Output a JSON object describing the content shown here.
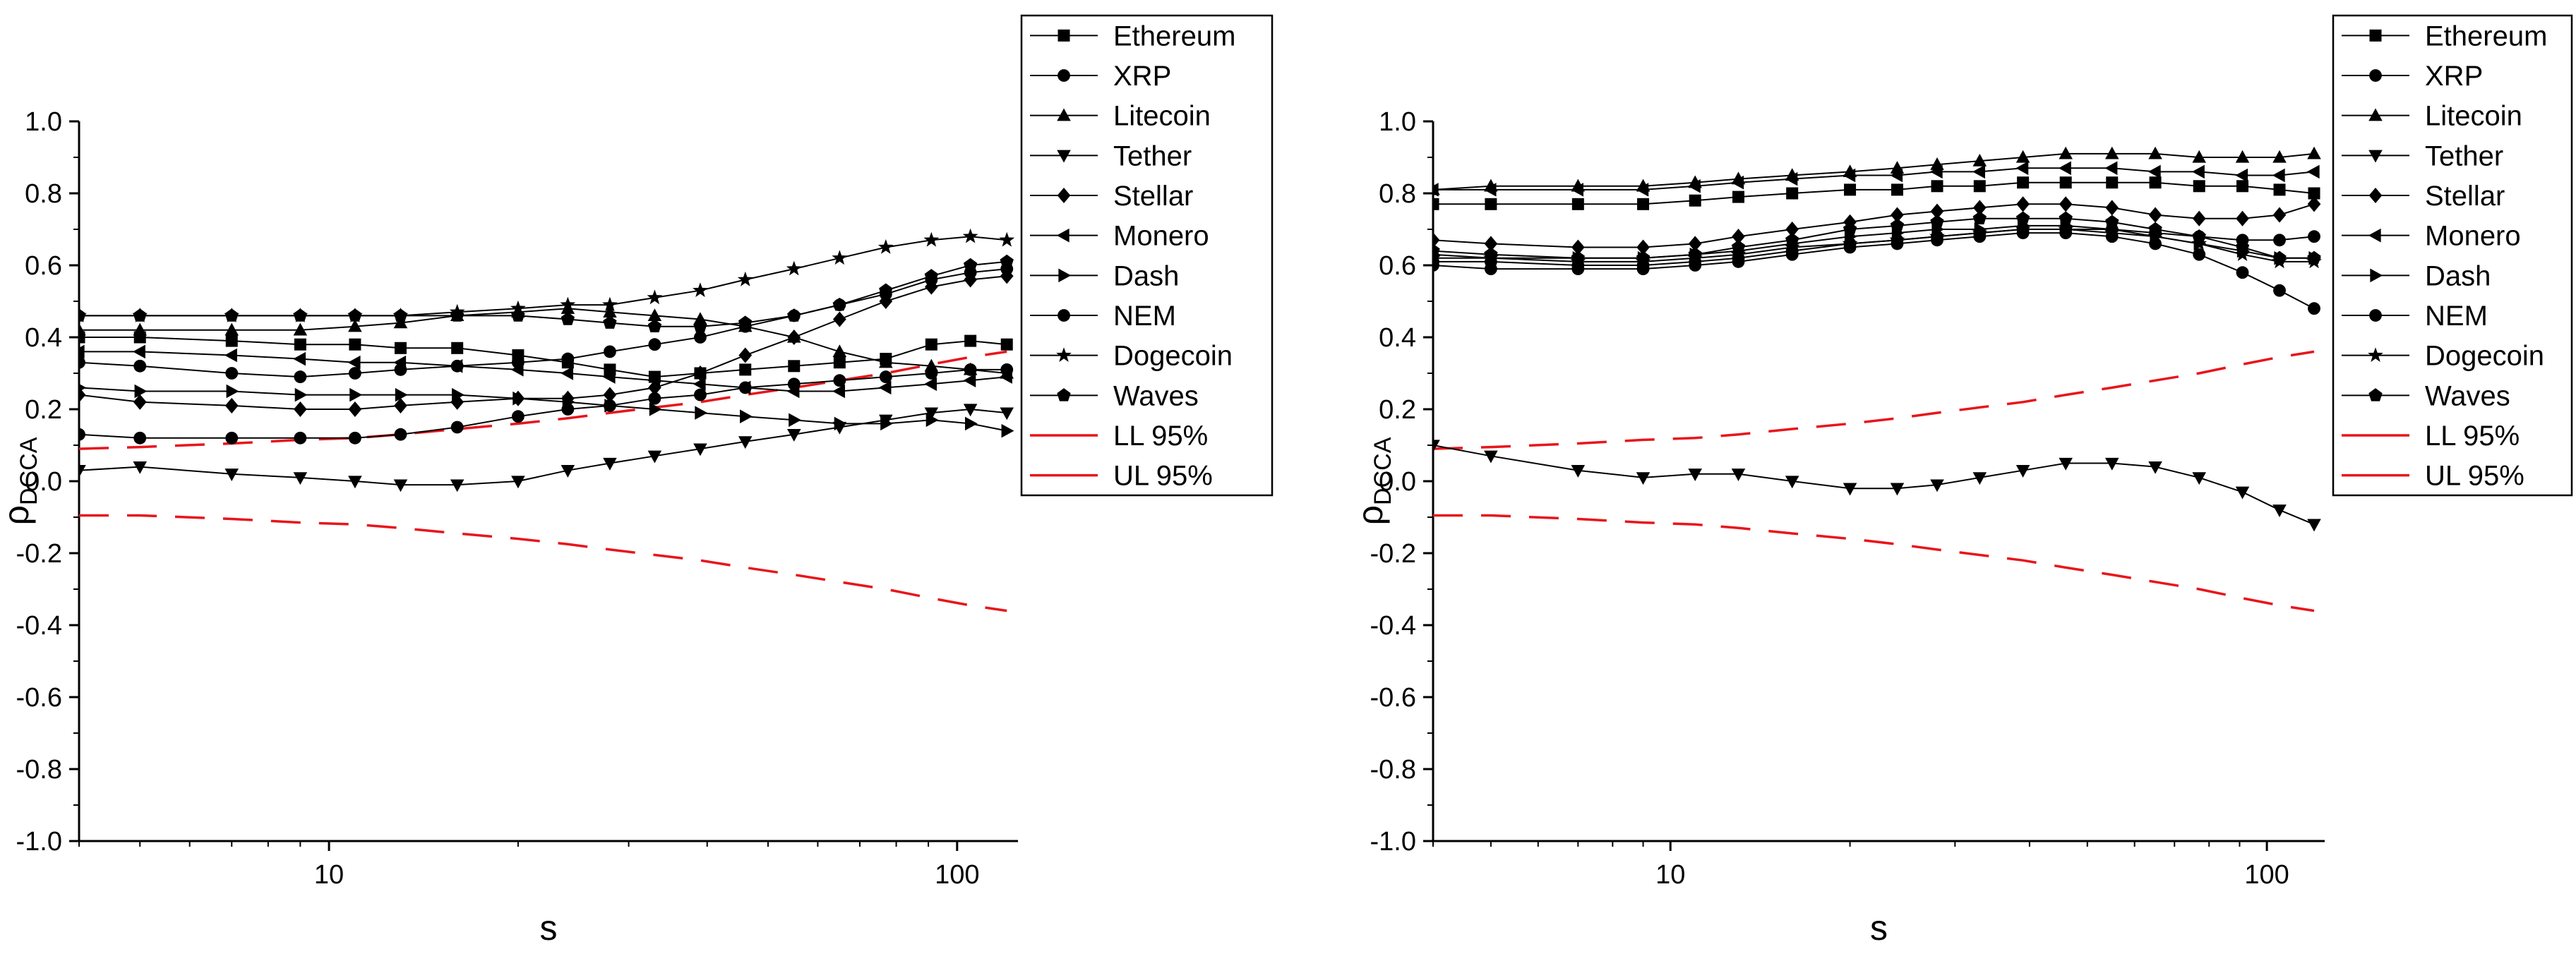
{
  "chart_data": [
    {
      "type": "line",
      "panel": "left",
      "xlabel": "s",
      "ylabel": "ρDCCA",
      "ylabel_main": "ρ",
      "ylabel_sub": "DCCA",
      "xscale": "log",
      "xlim": [
        4,
        125
      ],
      "ylim": [
        -1.0,
        1.0
      ],
      "yticks": [
        "-1.0",
        "-0.8",
        "-0.6",
        "-0.4",
        "-0.2",
        "0.0",
        "0.2",
        "0.4",
        "0.6",
        "0.8",
        "1.0"
      ],
      "xticks": [
        "10",
        "100"
      ],
      "legend_position": "top-right outside",
      "x": [
        4,
        5,
        7,
        9,
        11,
        13,
        16,
        20,
        24,
        28,
        33,
        39,
        46,
        55,
        65,
        77,
        91,
        105,
        120
      ],
      "series": [
        {
          "name": "Ethereum",
          "marker": "square",
          "values": [
            0.4,
            0.4,
            0.39,
            0.38,
            0.38,
            0.37,
            0.37,
            0.35,
            0.33,
            0.31,
            0.29,
            0.3,
            0.31,
            0.32,
            0.33,
            0.34,
            0.38,
            0.39,
            0.38
          ]
        },
        {
          "name": "XRP",
          "marker": "circle",
          "values": [
            0.13,
            0.12,
            0.12,
            0.12,
            0.12,
            0.13,
            0.15,
            0.18,
            0.2,
            0.21,
            0.23,
            0.24,
            0.26,
            0.27,
            0.28,
            0.29,
            0.3,
            0.31,
            0.31
          ]
        },
        {
          "name": "Litecoin",
          "marker": "triangle-up",
          "values": [
            0.42,
            0.42,
            0.42,
            0.42,
            0.43,
            0.44,
            0.46,
            0.47,
            0.48,
            0.47,
            0.46,
            0.45,
            0.43,
            0.4,
            0.36,
            0.33,
            0.32,
            0.31,
            0.3
          ]
        },
        {
          "name": "Tether",
          "marker": "triangle-down",
          "values": [
            0.03,
            0.04,
            0.02,
            0.01,
            0.0,
            -0.01,
            -0.01,
            0.0,
            0.03,
            0.05,
            0.07,
            0.09,
            0.11,
            0.13,
            0.15,
            0.17,
            0.19,
            0.2,
            0.19
          ]
        },
        {
          "name": "Stellar",
          "marker": "diamond",
          "values": [
            0.24,
            0.22,
            0.21,
            0.2,
            0.2,
            0.21,
            0.22,
            0.23,
            0.23,
            0.24,
            0.26,
            0.3,
            0.35,
            0.4,
            0.45,
            0.5,
            0.54,
            0.56,
            0.57
          ]
        },
        {
          "name": "Monero",
          "marker": "triangle-left",
          "values": [
            0.36,
            0.36,
            0.35,
            0.34,
            0.33,
            0.33,
            0.32,
            0.31,
            0.3,
            0.29,
            0.28,
            0.27,
            0.26,
            0.25,
            0.25,
            0.26,
            0.27,
            0.28,
            0.29
          ]
        },
        {
          "name": "Dash",
          "marker": "triangle-right",
          "values": [
            0.26,
            0.25,
            0.25,
            0.24,
            0.24,
            0.24,
            0.24,
            0.23,
            0.22,
            0.21,
            0.2,
            0.19,
            0.18,
            0.17,
            0.16,
            0.16,
            0.17,
            0.16,
            0.14
          ]
        },
        {
          "name": "NEM",
          "marker": "circle",
          "values": [
            0.33,
            0.32,
            0.3,
            0.29,
            0.3,
            0.31,
            0.32,
            0.33,
            0.34,
            0.36,
            0.38,
            0.4,
            0.43,
            0.46,
            0.49,
            0.52,
            0.56,
            0.58,
            0.59
          ]
        },
        {
          "name": "Dogecoin",
          "marker": "star",
          "values": [
            0.46,
            0.46,
            0.46,
            0.46,
            0.46,
            0.46,
            0.47,
            0.48,
            0.49,
            0.49,
            0.51,
            0.53,
            0.56,
            0.59,
            0.62,
            0.65,
            0.67,
            0.68,
            0.67
          ]
        },
        {
          "name": "Waves",
          "marker": "pentagon",
          "values": [
            0.46,
            0.46,
            0.46,
            0.46,
            0.46,
            0.46,
            0.46,
            0.46,
            0.45,
            0.44,
            0.43,
            0.43,
            0.44,
            0.46,
            0.49,
            0.53,
            0.57,
            0.6,
            0.61
          ]
        }
      ],
      "bounds": [
        {
          "name": "LL 95%",
          "values": [
            0.09,
            0.095,
            0.105,
            0.115,
            0.12,
            0.13,
            0.145,
            0.16,
            0.175,
            0.19,
            0.205,
            0.22,
            0.24,
            0.26,
            0.28,
            0.3,
            0.325,
            0.345,
            0.36
          ]
        },
        {
          "name": "UL 95%",
          "values": [
            -0.095,
            -0.095,
            -0.105,
            -0.115,
            -0.12,
            -0.13,
            -0.145,
            -0.16,
            -0.175,
            -0.19,
            -0.205,
            -0.22,
            -0.24,
            -0.26,
            -0.28,
            -0.3,
            -0.325,
            -0.345,
            -0.36
          ]
        }
      ]
    },
    {
      "type": "line",
      "panel": "right",
      "xlabel": "s",
      "ylabel": "ρDCCA",
      "ylabel_main": "ρ",
      "ylabel_sub": "DCCA",
      "xscale": "log",
      "xlim": [
        4,
        125
      ],
      "ylim": [
        -1.0,
        1.0
      ],
      "yticks": [
        "-1.0",
        "-0.8",
        "-0.6",
        "-0.4",
        "-0.2",
        "0.0",
        "0.2",
        "0.4",
        "0.6",
        "0.8",
        "1.0"
      ],
      "xticks": [
        "10",
        "100"
      ],
      "legend_position": "top-right outside",
      "x": [
        4,
        5,
        7,
        9,
        11,
        13,
        16,
        20,
        24,
        28,
        33,
        39,
        46,
        55,
        65,
        77,
        91,
        105,
        120
      ],
      "series": [
        {
          "name": "Ethereum",
          "marker": "square",
          "values": [
            0.77,
            0.77,
            0.77,
            0.77,
            0.78,
            0.79,
            0.8,
            0.81,
            0.81,
            0.82,
            0.82,
            0.83,
            0.83,
            0.83,
            0.83,
            0.82,
            0.82,
            0.81,
            0.8
          ]
        },
        {
          "name": "XRP",
          "marker": "circle",
          "values": [
            0.6,
            0.59,
            0.59,
            0.59,
            0.6,
            0.61,
            0.63,
            0.65,
            0.66,
            0.67,
            0.68,
            0.69,
            0.69,
            0.68,
            0.66,
            0.63,
            0.58,
            0.53,
            0.48
          ]
        },
        {
          "name": "Litecoin",
          "marker": "triangle-up",
          "values": [
            0.81,
            0.82,
            0.82,
            0.82,
            0.83,
            0.84,
            0.85,
            0.86,
            0.87,
            0.88,
            0.89,
            0.9,
            0.91,
            0.91,
            0.91,
            0.9,
            0.9,
            0.9,
            0.91
          ]
        },
        {
          "name": "Tether",
          "marker": "triangle-down",
          "values": [
            0.1,
            0.07,
            0.03,
            0.01,
            0.02,
            0.02,
            0.0,
            -0.02,
            -0.02,
            -0.01,
            0.01,
            0.03,
            0.05,
            0.05,
            0.04,
            0.01,
            -0.03,
            -0.08,
            -0.12
          ]
        },
        {
          "name": "Stellar",
          "marker": "diamond",
          "values": [
            0.67,
            0.66,
            0.65,
            0.65,
            0.66,
            0.68,
            0.7,
            0.72,
            0.74,
            0.75,
            0.76,
            0.77,
            0.77,
            0.76,
            0.74,
            0.73,
            0.73,
            0.74,
            0.77
          ]
        },
        {
          "name": "Monero",
          "marker": "triangle-left",
          "values": [
            0.81,
            0.81,
            0.81,
            0.81,
            0.82,
            0.83,
            0.84,
            0.85,
            0.85,
            0.86,
            0.86,
            0.87,
            0.87,
            0.87,
            0.86,
            0.86,
            0.85,
            0.85,
            0.86
          ]
        },
        {
          "name": "Dash",
          "marker": "triangle-right",
          "values": [
            0.63,
            0.62,
            0.62,
            0.62,
            0.63,
            0.64,
            0.66,
            0.68,
            0.69,
            0.7,
            0.7,
            0.71,
            0.71,
            0.7,
            0.68,
            0.66,
            0.64,
            0.62,
            0.62
          ]
        },
        {
          "name": "NEM",
          "marker": "circle",
          "values": [
            0.61,
            0.61,
            0.6,
            0.6,
            0.61,
            0.62,
            0.64,
            0.66,
            0.67,
            0.68,
            0.69,
            0.7,
            0.7,
            0.7,
            0.69,
            0.68,
            0.67,
            0.67,
            0.68
          ]
        },
        {
          "name": "Dogecoin",
          "marker": "star",
          "values": [
            0.62,
            0.62,
            0.61,
            0.61,
            0.62,
            0.63,
            0.65,
            0.66,
            0.67,
            0.68,
            0.69,
            0.7,
            0.7,
            0.69,
            0.68,
            0.66,
            0.63,
            0.61,
            0.61
          ]
        },
        {
          "name": "Waves",
          "marker": "pentagon",
          "values": [
            0.64,
            0.63,
            0.62,
            0.62,
            0.63,
            0.65,
            0.67,
            0.7,
            0.71,
            0.72,
            0.73,
            0.73,
            0.73,
            0.72,
            0.7,
            0.68,
            0.65,
            0.62,
            0.62
          ]
        }
      ],
      "bounds": [
        {
          "name": "LL 95%",
          "values": [
            0.09,
            0.095,
            0.105,
            0.115,
            0.12,
            0.13,
            0.145,
            0.16,
            0.175,
            0.19,
            0.205,
            0.22,
            0.24,
            0.26,
            0.28,
            0.3,
            0.325,
            0.345,
            0.36
          ]
        },
        {
          "name": "UL 95%",
          "values": [
            -0.095,
            -0.095,
            -0.105,
            -0.115,
            -0.12,
            -0.13,
            -0.145,
            -0.16,
            -0.175,
            -0.19,
            -0.205,
            -0.22,
            -0.24,
            -0.26,
            -0.28,
            -0.3,
            -0.325,
            -0.345,
            -0.36
          ]
        }
      ]
    }
  ],
  "colors": {
    "series": "#000000",
    "bounds": "#e8151b",
    "axis": "#000000"
  }
}
